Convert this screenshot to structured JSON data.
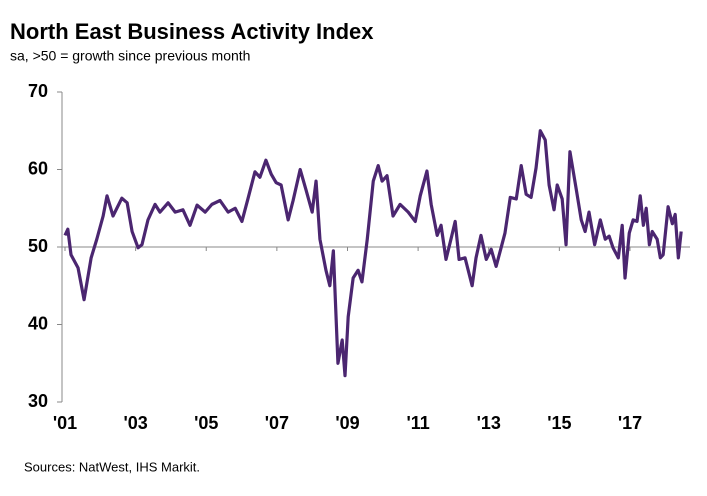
{
  "chart_data": {
    "type": "line",
    "title": "North East Business Activity Index",
    "subtitle": "sa, >50 = growth since previous month",
    "source": "Sources: NatWest, IHS Markit.",
    "x": [
      2001.0,
      2001.08,
      2001.17,
      2001.37,
      2001.54,
      2001.74,
      2001.9,
      2002.08,
      2002.19,
      2002.36,
      2002.61,
      2002.76,
      2002.9,
      2003.07,
      2003.18,
      2003.35,
      2003.55,
      2003.69,
      2003.92,
      2004.12,
      2004.34,
      2004.54,
      2004.74,
      2004.97,
      2005.16,
      2005.39,
      2005.62,
      2005.82,
      2006.01,
      2006.18,
      2006.38,
      2006.52,
      2006.69,
      2006.84,
      2006.98,
      2007.12,
      2007.32,
      2007.46,
      2007.66,
      2007.83,
      2008.0,
      2008.11,
      2008.22,
      2008.39,
      2008.5,
      2008.6,
      2008.73,
      2008.85,
      2008.93,
      2009.02,
      2009.16,
      2009.3,
      2009.41,
      2009.56,
      2009.73,
      2009.87,
      2009.98,
      2010.12,
      2010.29,
      2010.49,
      2010.72,
      2010.92,
      2011.06,
      2011.25,
      2011.37,
      2011.54,
      2011.65,
      2011.79,
      2011.93,
      2012.05,
      2012.16,
      2012.33,
      2012.53,
      2012.64,
      2012.78,
      2012.93,
      2013.07,
      2013.21,
      2013.35,
      2013.46,
      2013.61,
      2013.78,
      2013.92,
      2014.06,
      2014.2,
      2014.34,
      2014.46,
      2014.6,
      2014.71,
      2014.85,
      2014.94,
      2015.08,
      2015.19,
      2015.3,
      2015.48,
      2015.62,
      2015.73,
      2015.84,
      2016.0,
      2016.16,
      2016.3,
      2016.41,
      2016.52,
      2016.67,
      2016.78,
      2016.86,
      2016.98,
      2017.09,
      2017.2,
      2017.29,
      2017.38,
      2017.46,
      2017.55,
      2017.63,
      2017.77,
      2017.86,
      2017.94,
      2018.08,
      2018.2,
      2018.28,
      2018.37,
      2018.45
    ],
    "series": [
      {
        "name": "North East Business Activity Index",
        "color": "#4b2670",
        "values": [
          51.5,
          52.3,
          49,
          47.3,
          43.2,
          48.6,
          51,
          54,
          56.6,
          54,
          56.3,
          55.7,
          52,
          49.9,
          50.3,
          53.5,
          55.5,
          54.5,
          55.7,
          54.5,
          54.8,
          52.8,
          55.4,
          54.5,
          55.5,
          56,
          54.5,
          55,
          53.3,
          56.2,
          59.7,
          59,
          61.2,
          59.4,
          58.3,
          58,
          53.5,
          56,
          60,
          57.3,
          54.5,
          58.5,
          51,
          47,
          45,
          49.5,
          35,
          38,
          33.4,
          41,
          46,
          47,
          45.5,
          51,
          58.5,
          60.5,
          58.5,
          59.2,
          54,
          55.5,
          54.5,
          53.3,
          56.6,
          59.8,
          55.5,
          51.5,
          52.8,
          48.4,
          51,
          53.3,
          48.4,
          48.6,
          45,
          48.6,
          51.5,
          48.4,
          49.7,
          47.5,
          49.9,
          51.8,
          56.4,
          56.2,
          60.5,
          56.8,
          56.4,
          60.2,
          65,
          63.8,
          58,
          54.8,
          58,
          56.2,
          50.3,
          62.3,
          57.4,
          53.5,
          52,
          54.5,
          50.3,
          53.5,
          51,
          51.4,
          49.9,
          48.6,
          52.8,
          46,
          51.8,
          53.5,
          53.3,
          56.6,
          52.8,
          55,
          50.3,
          52,
          51,
          48.6,
          49,
          55.2,
          53,
          54.2,
          48.6,
          52
        ]
      }
    ],
    "xlim": [
      2000.915,
      2018.7
    ],
    "xticks": [
      {
        "value": 2001,
        "label": "'01"
      },
      {
        "value": 2003,
        "label": "'03"
      },
      {
        "value": 2005,
        "label": "'05"
      },
      {
        "value": 2007,
        "label": "'07"
      },
      {
        "value": 2009,
        "label": "'09"
      },
      {
        "value": 2011,
        "label": "'11"
      },
      {
        "value": 2013,
        "label": "'13"
      },
      {
        "value": 2015,
        "label": "'15"
      },
      {
        "value": 2017,
        "label": "'17"
      }
    ],
    "ylim": [
      30,
      70
    ],
    "yticks": [
      30,
      40,
      50,
      60,
      70
    ],
    "reference_line": 50,
    "grid": false
  }
}
